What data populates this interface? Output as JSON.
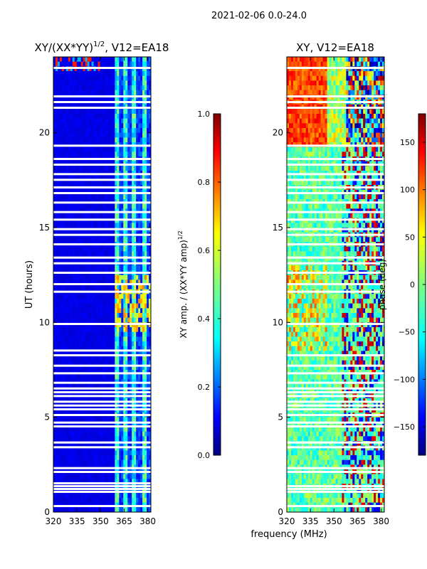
{
  "figure": {
    "suptitle": "2021-02-06 0.0-24.0",
    "xlabel": "frequency (MHz)"
  },
  "chart_data": [
    {
      "type": "heatmap",
      "title": "XY/(XX*YY)",
      "title_exponent": "1/2",
      "title_suffix": ", V12=EA18",
      "xlabel": "",
      "ylabel": "UT (hours)",
      "xlim": [
        320,
        382
      ],
      "ylim": [
        0,
        24
      ],
      "xticks": [
        320,
        335,
        350,
        365,
        380
      ],
      "yticks": [
        0,
        5,
        10,
        15,
        20
      ],
      "colormap": "jet",
      "band_edges_mhz": [
        359,
        362,
        364,
        367,
        370,
        373,
        376,
        379,
        382
      ],
      "flagged_hours": [
        0.3,
        1.05,
        1.2,
        1.35,
        1.5,
        2.1,
        2.3,
        3.4,
        3.65,
        4.5,
        4.7,
        5.1,
        5.4,
        5.6,
        5.8,
        6.1,
        6.3,
        6.5,
        6.8,
        7.3,
        7.7,
        8.25,
        8.5,
        9.9,
        11.6,
        12.0,
        12.6,
        13.1,
        13.4,
        14.1,
        14.6,
        14.9,
        15.4,
        15.8,
        16.3,
        16.8,
        17.1,
        17.5,
        17.8,
        18.3,
        18.6,
        19.3,
        21.3,
        21.6,
        21.9,
        23.4
      ],
      "colorbar": {
        "label": "XY amp. / (XX*YY amp)",
        "label_exponent": "1/2",
        "range": [
          0,
          1
        ],
        "ticks": [
          "0.0",
          "0.2",
          "0.4",
          "0.6",
          "0.8",
          "1.0"
        ]
      }
    },
    {
      "type": "heatmap",
      "title": "XY, V12=EA18",
      "xlabel": "frequency (MHz)",
      "ylabel": "",
      "xlim": [
        320,
        382
      ],
      "ylim": [
        0,
        24
      ],
      "xticks": [
        320,
        335,
        350,
        365,
        380
      ],
      "yticks": [
        0,
        5,
        10,
        15,
        20
      ],
      "colormap": "jet",
      "flagged_hours": [
        0.3,
        1.05,
        1.2,
        1.35,
        2.1,
        2.3,
        3.4,
        3.65,
        4.5,
        4.7,
        5.1,
        5.4,
        5.6,
        5.8,
        6.1,
        6.3,
        6.5,
        6.8,
        7.3,
        7.7,
        8.25,
        9.9,
        11.6,
        12.0,
        12.6,
        13.1,
        13.4,
        14.1,
        14.6,
        14.9,
        15.4,
        15.8,
        16.3,
        16.8,
        17.1,
        17.5,
        17.8,
        18.3,
        18.6,
        19.3,
        21.3,
        21.6,
        21.9,
        23.4
      ],
      "colorbar": {
        "label": "phase (deg)",
        "range": [
          -180,
          180
        ],
        "ticks": [
          "150",
          "100",
          "50",
          "0",
          "−50",
          "−100",
          "−150"
        ],
        "tick_values": [
          150,
          100,
          50,
          0,
          -50,
          -100,
          -150
        ]
      }
    }
  ]
}
